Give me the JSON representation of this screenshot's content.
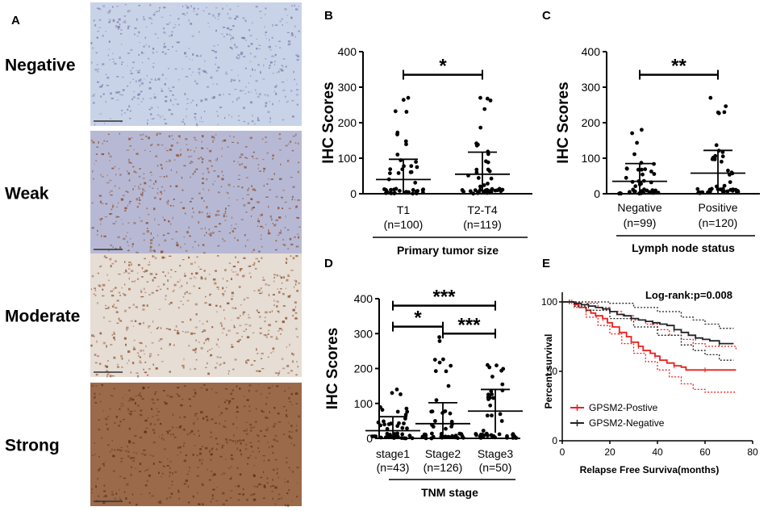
{
  "panel_a": {
    "letter": "A",
    "rows": [
      {
        "label": "Negative",
        "tone": "#c9d3e8",
        "speck": "#7a7aa8"
      },
      {
        "label": "Weak",
        "tone": "#b7b9d4",
        "speck": "#8a4a2a"
      },
      {
        "label": "Moderate",
        "tone": "#e6ddd4",
        "speck": "#8b4a28"
      },
      {
        "label": "Strong",
        "tone": "#9a6a4a",
        "speck": "#5a2e16"
      }
    ]
  },
  "chart_data": [
    {
      "panel": "B",
      "type": "scatter",
      "ylabel": "IHC Scores",
      "ylim": [
        0,
        400
      ],
      "yticks": [
        "0",
        "100",
        "200",
        "300",
        "400"
      ],
      "xlabel": "Primary tumor size",
      "groups": [
        {
          "label": "T1",
          "n": "(n=100)",
          "mean": 40,
          "sd": 57,
          "max": 270
        },
        {
          "label": "T2-T4",
          "n": "(n=119)",
          "mean": 55,
          "sd": 62,
          "max": 270
        }
      ],
      "brackets": [
        {
          "from": 0,
          "to": 1,
          "y": 335,
          "stars": "*"
        }
      ]
    },
    {
      "panel": "C",
      "type": "scatter",
      "ylabel": "IHC Scores",
      "ylim": [
        0,
        400
      ],
      "yticks": [
        "0",
        "100",
        "200",
        "300",
        "400"
      ],
      "xlabel": "Lymph node status",
      "groups": [
        {
          "label": "Negative",
          "n": "(n=99)",
          "mean": 35,
          "sd": 50,
          "max": 180
        },
        {
          "label": "Positive",
          "n": "(n=120)",
          "mean": 58,
          "sd": 64,
          "max": 270
        }
      ],
      "brackets": [
        {
          "from": 0,
          "to": 1,
          "y": 335,
          "stars": "**"
        }
      ]
    },
    {
      "panel": "D",
      "type": "scatter",
      "ylabel": "IHC Scores",
      "ylim": [
        0,
        400
      ],
      "yticks": [
        "0",
        "100",
        "200",
        "300",
        "400"
      ],
      "xlabel": "TNM stage",
      "groups": [
        {
          "label": "stage1",
          "n": "(n=43)",
          "mean": 22,
          "sd": 40,
          "max": 140
        },
        {
          "label": "Stage2",
          "n": "(n=126)",
          "mean": 42,
          "sd": 60,
          "max": 290
        },
        {
          "label": "Stage3",
          "n": "(n=50)",
          "mean": 78,
          "sd": 62,
          "max": 210
        }
      ],
      "brackets": [
        {
          "from": 0,
          "to": 2,
          "y": 380,
          "stars": "***"
        },
        {
          "from": 0,
          "to": 1,
          "y": 320,
          "stars": "*"
        },
        {
          "from": 1,
          "to": 2,
          "y": 300,
          "stars": "***"
        }
      ]
    },
    {
      "panel": "E",
      "type": "line",
      "ylabel": "Percent survival",
      "xlabel": "Relapse Free Surviva(months)",
      "xlim": [
        0,
        80
      ],
      "ylim": [
        0,
        100
      ],
      "xticks": [
        "0",
        "20",
        "40",
        "60",
        "80"
      ],
      "yticks": [
        "0",
        "50",
        "100"
      ],
      "annotation": "Log-rank:p=0.008",
      "series": [
        {
          "name": "GPSM2-Postive",
          "color": "#e8211d",
          "points": [
            [
              0,
              100
            ],
            [
              4,
              100
            ],
            [
              5,
              98
            ],
            [
              7,
              96
            ],
            [
              10,
              94
            ],
            [
              12,
              92
            ],
            [
              14,
              90
            ],
            [
              17,
              88
            ],
            [
              19,
              85
            ],
            [
              21,
              82
            ],
            [
              24,
              78
            ],
            [
              27,
              75
            ],
            [
              29,
              71
            ],
            [
              32,
              68
            ],
            [
              34,
              65
            ],
            [
              37,
              63
            ],
            [
              39,
              61
            ],
            [
              41,
              58
            ],
            [
              44,
              56
            ],
            [
              47,
              54
            ],
            [
              50,
              53
            ],
            [
              52,
              51
            ],
            [
              60,
              51
            ],
            [
              73,
              51
            ]
          ],
          "upper": [
            [
              0,
              100
            ],
            [
              5,
              100
            ],
            [
              10,
              99
            ],
            [
              15,
              96
            ],
            [
              20,
              93
            ],
            [
              25,
              90
            ],
            [
              30,
              87
            ],
            [
              35,
              84
            ],
            [
              40,
              80
            ],
            [
              45,
              76
            ],
            [
              50,
              73
            ],
            [
              55,
              70
            ],
            [
              60,
              68
            ],
            [
              73,
              66
            ]
          ],
          "lower": [
            [
              0,
              100
            ],
            [
              5,
              96
            ],
            [
              10,
              89
            ],
            [
              15,
              83
            ],
            [
              20,
              77
            ],
            [
              25,
              70
            ],
            [
              30,
              63
            ],
            [
              35,
              57
            ],
            [
              40,
              51
            ],
            [
              45,
              46
            ],
            [
              50,
              41
            ],
            [
              55,
              37
            ],
            [
              60,
              35
            ],
            [
              73,
              35
            ]
          ]
        },
        {
          "name": "GPSM2-Negative",
          "color": "#222222",
          "points": [
            [
              0,
              100
            ],
            [
              3,
              100
            ],
            [
              5,
              99
            ],
            [
              8,
              98
            ],
            [
              11,
              97
            ],
            [
              14,
              96
            ],
            [
              17,
              95
            ],
            [
              20,
              93
            ],
            [
              23,
              91
            ],
            [
              26,
              90
            ],
            [
              29,
              88
            ],
            [
              32,
              87
            ],
            [
              35,
              86
            ],
            [
              38,
              85
            ],
            [
              41,
              84
            ],
            [
              44,
              83
            ],
            [
              47,
              80
            ],
            [
              50,
              78
            ],
            [
              53,
              76
            ],
            [
              56,
              74
            ],
            [
              59,
              73
            ],
            [
              62,
              72
            ],
            [
              66,
              70
            ],
            [
              72,
              70
            ]
          ],
          "upper": [
            [
              0,
              100
            ],
            [
              5,
              100
            ],
            [
              10,
              100
            ],
            [
              20,
              99
            ],
            [
              30,
              96
            ],
            [
              40,
              93
            ],
            [
              50,
              89
            ],
            [
              55,
              87
            ],
            [
              60,
              84
            ],
            [
              66,
              81
            ],
            [
              72,
              81
            ]
          ],
          "lower": [
            [
              0,
              100
            ],
            [
              5,
              97
            ],
            [
              10,
              94
            ],
            [
              20,
              88
            ],
            [
              30,
              82
            ],
            [
              40,
              76
            ],
            [
              50,
              69
            ],
            [
              55,
              65
            ],
            [
              60,
              62
            ],
            [
              66,
              58
            ],
            [
              72,
              58
            ]
          ]
        }
      ]
    }
  ]
}
